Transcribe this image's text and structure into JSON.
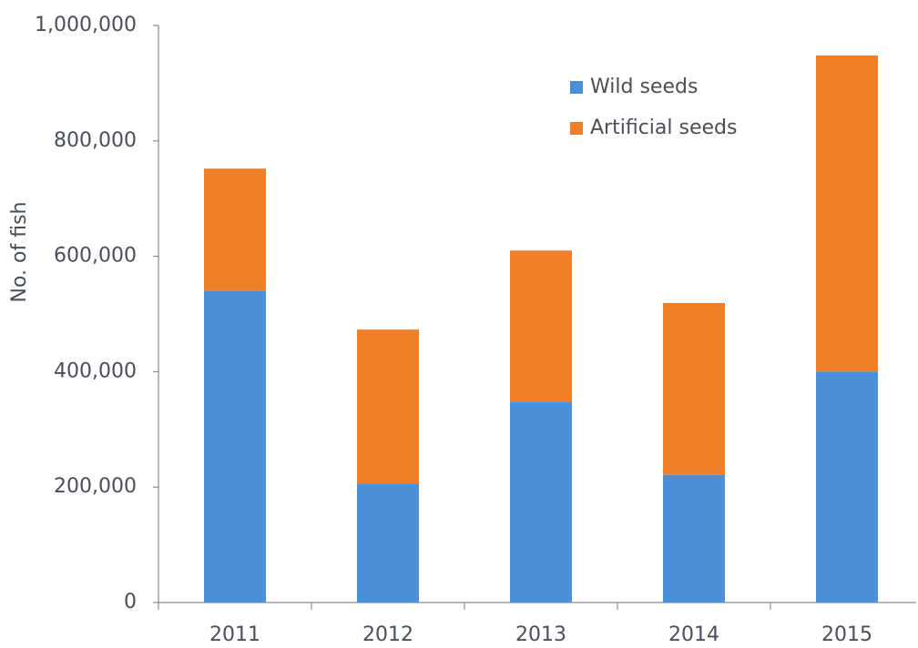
{
  "chart_data": {
    "type": "stacked_bar",
    "y_label": "No. of fish",
    "categories": [
      "2011",
      "2012",
      "2013",
      "2014",
      "2015"
    ],
    "series": [
      {
        "name": "Wild seeds",
        "color": "#4a90d9",
        "values": [
          540000,
          205000,
          347000,
          221000,
          400000
        ]
      },
      {
        "name": "Artificial seeds",
        "color": "#f07f2a",
        "values": [
          212000,
          268000,
          263000,
          298000,
          548000
        ]
      }
    ],
    "ylim": [
      0,
      1000000
    ],
    "yticks": [
      0,
      {
        "value": 200000,
        "label": "200,000"
      },
      {
        "value": 400000,
        "label": "400,000"
      },
      {
        "value": 600000,
        "label": "600,000"
      },
      {
        "value": 800000,
        "label": "800,000"
      },
      {
        "value": 1000000,
        "label": "1,000,000"
      }
    ],
    "legend": "upper right"
  }
}
